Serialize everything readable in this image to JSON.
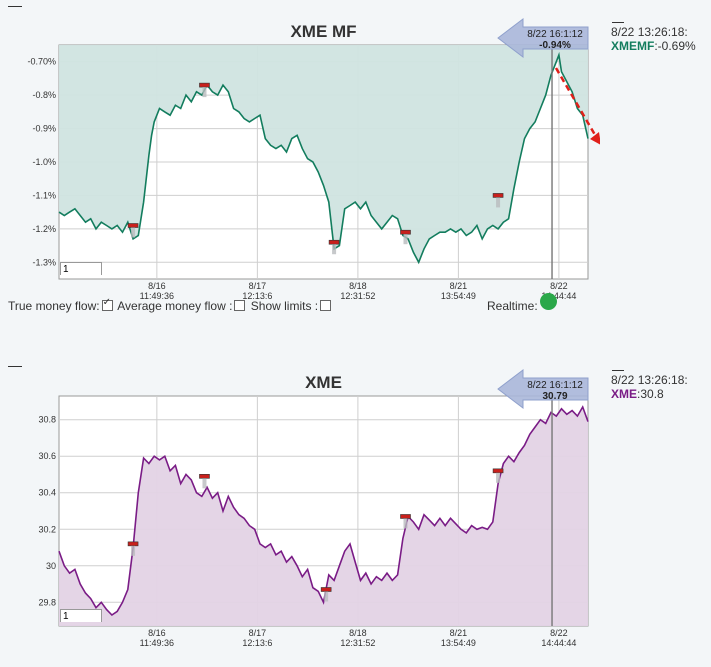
{
  "controls": {
    "true_flow_label": "True money flow:",
    "avg_flow_label": "Average money flow :",
    "show_limits_label": "Show limits :",
    "realtime_label": "Realtime:",
    "true_flow_checked": true,
    "avg_flow_checked": false,
    "show_limits_checked": false,
    "realtime_color": "#2aa84a"
  },
  "chart_data": [
    {
      "type": "area",
      "title": "XME MF",
      "color": "#137d5e",
      "fill": "#d0e4e0",
      "ylim": [
        -1.35,
        -0.65
      ],
      "yticks": [
        -1.3,
        -1.2,
        -1.1,
        -1.0,
        -0.9,
        -0.8,
        -0.7
      ],
      "ytick_labels": [
        "-1.3%",
        "-1.2%",
        "-1.1%",
        "-1.0%",
        "-0.9%",
        "-0.8%",
        "-0.70%"
      ],
      "xticks": [
        {
          "x": 0.185,
          "date": "8/16",
          "time": "11:49:36"
        },
        {
          "x": 0.375,
          "date": "8/17",
          "time": "12:13:6"
        },
        {
          "x": 0.565,
          "date": "8/18",
          "time": "12:31:52"
        },
        {
          "x": 0.755,
          "date": "8/21",
          "time": "13:54:49"
        },
        {
          "x": 0.945,
          "date": "8/22",
          "time": "14:44:44"
        }
      ],
      "series": [
        {
          "values": [
            [
              0.0,
              -1.15
            ],
            [
              0.01,
              -1.16
            ],
            [
              0.02,
              -1.15
            ],
            [
              0.03,
              -1.14
            ],
            [
              0.04,
              -1.16
            ],
            [
              0.05,
              -1.18
            ],
            [
              0.06,
              -1.17
            ],
            [
              0.07,
              -1.2
            ],
            [
              0.08,
              -1.18
            ],
            [
              0.09,
              -1.19
            ],
            [
              0.1,
              -1.2
            ],
            [
              0.11,
              -1.19
            ],
            [
              0.12,
              -1.21
            ],
            [
              0.13,
              -1.18
            ],
            [
              0.14,
              -1.23
            ],
            [
              0.15,
              -1.22
            ],
            [
              0.16,
              -1.12
            ],
            [
              0.17,
              -0.98
            ],
            [
              0.175,
              -0.92
            ],
            [
              0.18,
              -0.88
            ],
            [
              0.19,
              -0.84
            ],
            [
              0.2,
              -0.85
            ],
            [
              0.21,
              -0.86
            ],
            [
              0.22,
              -0.83
            ],
            [
              0.23,
              -0.84
            ],
            [
              0.24,
              -0.8
            ],
            [
              0.25,
              -0.82
            ],
            [
              0.26,
              -0.79
            ],
            [
              0.27,
              -0.8
            ],
            [
              0.28,
              -0.77
            ],
            [
              0.29,
              -0.79
            ],
            [
              0.3,
              -0.8
            ],
            [
              0.31,
              -0.77
            ],
            [
              0.32,
              -0.79
            ],
            [
              0.33,
              -0.84
            ],
            [
              0.34,
              -0.85
            ],
            [
              0.35,
              -0.87
            ],
            [
              0.36,
              -0.88
            ],
            [
              0.37,
              -0.87
            ],
            [
              0.38,
              -0.86
            ],
            [
              0.39,
              -0.93
            ],
            [
              0.4,
              -0.95
            ],
            [
              0.41,
              -0.96
            ],
            [
              0.42,
              -0.95
            ],
            [
              0.43,
              -0.97
            ],
            [
              0.44,
              -0.93
            ],
            [
              0.45,
              -0.92
            ],
            [
              0.46,
              -0.96
            ],
            [
              0.47,
              -0.99
            ],
            [
              0.48,
              -1.0
            ],
            [
              0.49,
              -1.03
            ],
            [
              0.5,
              -1.07
            ],
            [
              0.51,
              -1.12
            ],
            [
              0.52,
              -1.26
            ],
            [
              0.53,
              -1.25
            ],
            [
              0.54,
              -1.14
            ],
            [
              0.55,
              -1.13
            ],
            [
              0.56,
              -1.12
            ],
            [
              0.57,
              -1.14
            ],
            [
              0.58,
              -1.12
            ],
            [
              0.59,
              -1.16
            ],
            [
              0.6,
              -1.18
            ],
            [
              0.61,
              -1.2
            ],
            [
              0.62,
              -1.18
            ],
            [
              0.63,
              -1.16
            ],
            [
              0.64,
              -1.17
            ],
            [
              0.65,
              -1.22
            ],
            [
              0.66,
              -1.23
            ],
            [
              0.67,
              -1.27
            ],
            [
              0.68,
              -1.3
            ],
            [
              0.69,
              -1.26
            ],
            [
              0.7,
              -1.23
            ],
            [
              0.71,
              -1.22
            ],
            [
              0.72,
              -1.21
            ],
            [
              0.73,
              -1.21
            ],
            [
              0.74,
              -1.2
            ],
            [
              0.75,
              -1.21
            ],
            [
              0.76,
              -1.2
            ],
            [
              0.77,
              -1.22
            ],
            [
              0.78,
              -1.21
            ],
            [
              0.79,
              -1.19
            ],
            [
              0.8,
              -1.23
            ],
            [
              0.81,
              -1.2
            ],
            [
              0.82,
              -1.19
            ],
            [
              0.83,
              -1.2
            ],
            [
              0.84,
              -1.18
            ],
            [
              0.85,
              -1.17
            ],
            [
              0.86,
              -1.08
            ],
            [
              0.87,
              -1.0
            ],
            [
              0.88,
              -0.93
            ],
            [
              0.89,
              -0.9
            ],
            [
              0.9,
              -0.88
            ],
            [
              0.91,
              -0.84
            ],
            [
              0.92,
              -0.8
            ],
            [
              0.93,
              -0.74
            ],
            [
              0.94,
              -0.7
            ],
            [
              0.945,
              -0.68
            ],
            [
              0.95,
              -0.73
            ],
            [
              0.96,
              -0.76
            ],
            [
              0.97,
              -0.79
            ],
            [
              0.98,
              -0.84
            ],
            [
              0.99,
              -0.86
            ],
            [
              1.0,
              -0.93
            ]
          ]
        }
      ],
      "markers": [
        [
          0.14,
          -1.19
        ],
        [
          0.275,
          -0.77
        ],
        [
          0.52,
          -1.24
        ],
        [
          0.655,
          -1.21
        ],
        [
          0.83,
          -1.1
        ]
      ],
      "cursor_x": 0.932,
      "tooltip": {
        "time": "8/22 16:1:12",
        "value": "-0.94%"
      },
      "side": {
        "time": "8/22 13:26:18:",
        "symbol": "XMEMF",
        "value": ":-0.69%"
      },
      "input_value": "1"
    },
    {
      "type": "area",
      "title": "XME",
      "color": "#7a1c86",
      "fill": "#e3d3e5",
      "ylim": [
        29.67,
        30.93
      ],
      "yticks": [
        29.8,
        30,
        30.2,
        30.4,
        30.6,
        30.8
      ],
      "ytick_labels": [
        "29.8",
        "30",
        "30.2",
        "30.4",
        "30.6",
        "30.8"
      ],
      "xticks": [
        {
          "x": 0.185,
          "date": "8/16",
          "time": "11:49:36"
        },
        {
          "x": 0.375,
          "date": "8/17",
          "time": "12:13:6"
        },
        {
          "x": 0.565,
          "date": "8/18",
          "time": "12:31:52"
        },
        {
          "x": 0.755,
          "date": "8/21",
          "time": "13:54:49"
        },
        {
          "x": 0.945,
          "date": "8/22",
          "time": "14:44:44"
        }
      ],
      "series": [
        {
          "values": [
            [
              0.0,
              30.08
            ],
            [
              0.01,
              30.0
            ],
            [
              0.02,
              29.96
            ],
            [
              0.03,
              29.98
            ],
            [
              0.04,
              29.9
            ],
            [
              0.05,
              29.85
            ],
            [
              0.06,
              29.82
            ],
            [
              0.07,
              29.77
            ],
            [
              0.08,
              29.8
            ],
            [
              0.09,
              29.76
            ],
            [
              0.1,
              29.73
            ],
            [
              0.11,
              29.75
            ],
            [
              0.12,
              29.8
            ],
            [
              0.13,
              29.87
            ],
            [
              0.14,
              30.1
            ],
            [
              0.15,
              30.4
            ],
            [
              0.16,
              30.59
            ],
            [
              0.17,
              30.56
            ],
            [
              0.18,
              30.6
            ],
            [
              0.19,
              30.58
            ],
            [
              0.2,
              30.6
            ],
            [
              0.21,
              30.52
            ],
            [
              0.22,
              30.55
            ],
            [
              0.23,
              30.45
            ],
            [
              0.24,
              30.5
            ],
            [
              0.25,
              30.47
            ],
            [
              0.26,
              30.4
            ],
            [
              0.27,
              30.38
            ],
            [
              0.28,
              30.43
            ],
            [
              0.29,
              30.37
            ],
            [
              0.3,
              30.4
            ],
            [
              0.31,
              30.3
            ],
            [
              0.32,
              30.38
            ],
            [
              0.33,
              30.32
            ],
            [
              0.34,
              30.28
            ],
            [
              0.35,
              30.26
            ],
            [
              0.36,
              30.22
            ],
            [
              0.37,
              30.2
            ],
            [
              0.38,
              30.12
            ],
            [
              0.39,
              30.1
            ],
            [
              0.4,
              30.12
            ],
            [
              0.41,
              30.06
            ],
            [
              0.42,
              30.08
            ],
            [
              0.43,
              30.02
            ],
            [
              0.44,
              30.05
            ],
            [
              0.45,
              30.0
            ],
            [
              0.46,
              29.94
            ],
            [
              0.47,
              29.98
            ],
            [
              0.48,
              29.88
            ],
            [
              0.49,
              29.86
            ],
            [
              0.5,
              29.8
            ],
            [
              0.51,
              29.95
            ],
            [
              0.52,
              29.92
            ],
            [
              0.53,
              30.0
            ],
            [
              0.54,
              30.08
            ],
            [
              0.55,
              30.12
            ],
            [
              0.56,
              30.02
            ],
            [
              0.57,
              29.92
            ],
            [
              0.58,
              29.96
            ],
            [
              0.59,
              29.9
            ],
            [
              0.6,
              29.94
            ],
            [
              0.61,
              29.92
            ],
            [
              0.62,
              29.96
            ],
            [
              0.63,
              29.92
            ],
            [
              0.64,
              29.95
            ],
            [
              0.65,
              30.15
            ],
            [
              0.66,
              30.27
            ],
            [
              0.67,
              30.24
            ],
            [
              0.68,
              30.2
            ],
            [
              0.69,
              30.28
            ],
            [
              0.7,
              30.25
            ],
            [
              0.71,
              30.22
            ],
            [
              0.72,
              30.26
            ],
            [
              0.73,
              30.22
            ],
            [
              0.74,
              30.26
            ],
            [
              0.75,
              30.23
            ],
            [
              0.76,
              30.2
            ],
            [
              0.77,
              30.18
            ],
            [
              0.78,
              30.22
            ],
            [
              0.79,
              30.2
            ],
            [
              0.8,
              30.21
            ],
            [
              0.81,
              30.2
            ],
            [
              0.82,
              30.24
            ],
            [
              0.83,
              30.45
            ],
            [
              0.84,
              30.56
            ],
            [
              0.85,
              30.6
            ],
            [
              0.86,
              30.57
            ],
            [
              0.87,
              30.62
            ],
            [
              0.88,
              30.66
            ],
            [
              0.89,
              30.72
            ],
            [
              0.9,
              30.76
            ],
            [
              0.91,
              30.8
            ],
            [
              0.92,
              30.78
            ],
            [
              0.93,
              30.84
            ],
            [
              0.94,
              30.82
            ],
            [
              0.95,
              30.86
            ],
            [
              0.96,
              30.83
            ],
            [
              0.97,
              30.85
            ],
            [
              0.98,
              30.82
            ],
            [
              0.99,
              30.87
            ],
            [
              1.0,
              30.79
            ]
          ]
        }
      ],
      "markers": [
        [
          0.14,
          30.12
        ],
        [
          0.275,
          30.49
        ],
        [
          0.505,
          29.87
        ],
        [
          0.655,
          30.27
        ],
        [
          0.83,
          30.52
        ]
      ],
      "cursor_x": 0.932,
      "tooltip": {
        "time": "8/22 16:1:12",
        "value": "30.79"
      },
      "side": {
        "time": "8/22 13:26:18:",
        "symbol": "XME",
        "value": ":30.8"
      },
      "input_value": "1"
    }
  ]
}
